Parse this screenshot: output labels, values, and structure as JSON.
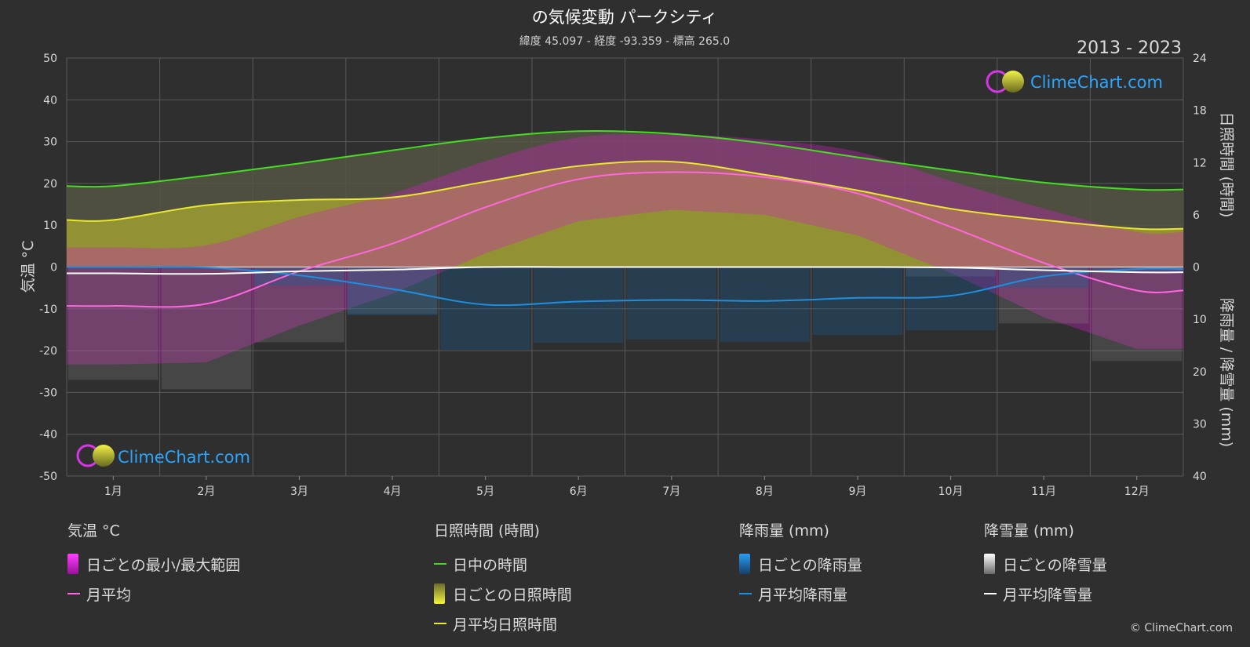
{
  "chart_data": {
    "type": "line",
    "title": "の気候変動 パークシティ",
    "subtitle": "緯度 45.097 - 経度 -93.359 - 標高 265.0",
    "year_range": "2013 - 2023",
    "ylabel_left": "気温 °C",
    "ylabel_right_top": "日照時間 (時間)",
    "ylabel_right_bottom": "降雨量 / 降雪量 (mm)",
    "ylim_temperature": [
      -50,
      50
    ],
    "yticks_left": [
      "50",
      "40",
      "30",
      "20",
      "10",
      "0",
      "-10",
      "-20",
      "-30",
      "-40",
      "-50"
    ],
    "ylim_sunshine_hours": [
      0,
      24
    ],
    "yticks_right_top": [
      "24",
      "18",
      "12",
      "6",
      "0"
    ],
    "ylim_precipitation_mm": [
      0,
      40
    ],
    "yticks_right_bottom": [
      "10",
      "20",
      "30",
      "40"
    ],
    "categories": [
      "1月",
      "2月",
      "3月",
      "4月",
      "5月",
      "6月",
      "7月",
      "8月",
      "9月",
      "10月",
      "11月",
      "12月"
    ],
    "grid": true,
    "series": [
      {
        "name": "日中の時間",
        "unit": "hours",
        "color": "#44dd22",
        "values": [
          9.3,
          10.5,
          11.9,
          13.4,
          14.8,
          15.6,
          15.3,
          14.2,
          12.6,
          11.1,
          9.7,
          8.9
        ]
      },
      {
        "name": "月平均日照時間",
        "unit": "hours",
        "color": "#e8e830",
        "values": [
          5.4,
          7.1,
          7.7,
          8.0,
          9.8,
          11.6,
          12.1,
          10.6,
          8.8,
          6.7,
          5.4,
          4.4
        ]
      },
      {
        "name": "月平均",
        "unit": "°C",
        "color": "#ff66e0",
        "values": [
          -9.3,
          -8.8,
          -1.0,
          5.6,
          14.3,
          21.0,
          22.7,
          21.5,
          17.6,
          9.6,
          1.0,
          -5.6
        ]
      },
      {
        "name": "月平均降雨量",
        "unit": "mm",
        "color": "#1e8fe0",
        "values": [
          0.0,
          0.1,
          1.6,
          4.2,
          7.2,
          6.6,
          6.3,
          6.5,
          5.9,
          5.5,
          1.8,
          0.4
        ]
      },
      {
        "name": "月平均降雪量",
        "unit": "mm",
        "color": "#ffffff",
        "values": [
          1.2,
          1.3,
          0.8,
          0.5,
          0.0,
          0.0,
          0.0,
          0.0,
          0.0,
          0.1,
          0.6,
          1.0
        ]
      }
    ]
  },
  "legend": {
    "temperature": {
      "heading": "気温 °C",
      "daily_range": "日ごとの最小/最大範囲",
      "monthly_avg": "月平均"
    },
    "sunshine": {
      "heading": "日照時間 (時間)",
      "daylight": "日中の時間",
      "daily_sunshine": "日ごとの日照時間",
      "monthly_avg_sunshine": "月平均日照時間"
    },
    "rain": {
      "heading": "降雨量 (mm)",
      "daily_rain": "日ごとの降雨量",
      "monthly_avg_rain": "月平均降雨量"
    },
    "snow": {
      "heading": "降雪量 (mm)",
      "daily_snow": "日ごとの降雪量",
      "monthly_avg_snow": "月平均降雪量"
    }
  },
  "logo": {
    "text": "ClimeChart.com"
  },
  "copyright": "© ClimeChart.com",
  "colors": {
    "background": "#2f2f2f",
    "temp_range": "#d020c0",
    "sunshine_fill": "#a8a830",
    "daylight_fill": "#555544",
    "rain_bar": "#1a5c8f",
    "snow_bar": "#9a9a9a"
  }
}
